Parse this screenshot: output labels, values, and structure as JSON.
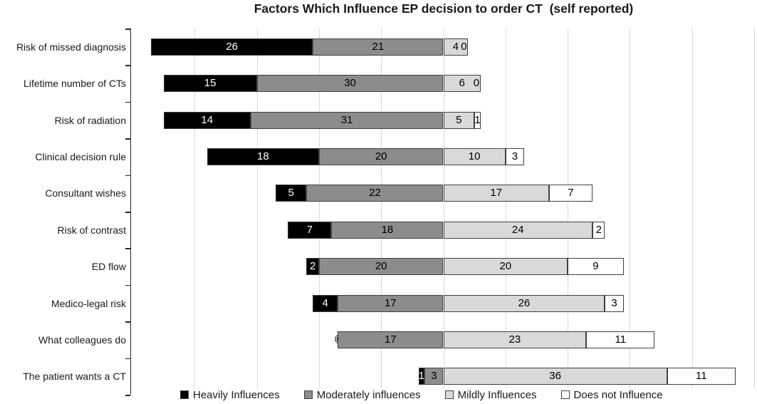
{
  "title": "Factors Which Influence EP decision to order CT  (self reported)",
  "chart_data": {
    "type": "bar",
    "variant": "horizontal-diverging-stacked",
    "title": "Factors Which Influence EP decision to order CT  (self reported)",
    "categories": [
      "Risk of missed diagnosis",
      "Lifetime number of CTs",
      "Risk of radiation",
      "Clinical decision rule",
      "Consultant wishes",
      "Risk of contrast",
      "ED flow",
      "Medico-legal risk",
      "What colleagues do",
      "The patient wants a CT"
    ],
    "series": [
      {
        "name": "Heavily Influences",
        "color": "#000000",
        "label_color": "#ffffff",
        "values": [
          26,
          15,
          14,
          18,
          5,
          7,
          2,
          4,
          0,
          1
        ]
      },
      {
        "name": "Moderately influences",
        "color": "#8c8c8c",
        "label_color": "#000000",
        "values": [
          21,
          30,
          31,
          20,
          22,
          18,
          20,
          17,
          17,
          3
        ]
      },
      {
        "name": "Mildly Influences",
        "color": "#d9d9d9",
        "label_color": "#000000",
        "values": [
          4,
          6,
          5,
          10,
          17,
          24,
          20,
          26,
          23,
          36
        ]
      },
      {
        "name": "Does not Influence",
        "color": "#ffffff",
        "label_color": "#000000",
        "values": [
          0,
          0,
          1,
          3,
          7,
          2,
          9,
          3,
          11,
          11
        ]
      }
    ],
    "diverging_anchor": "boundary between Moderately influences and Mildly Influences",
    "data_labels_shown": true,
    "x_axis_tick_labels_shown": false,
    "grid": "vertical gridlines every 10 units",
    "legend_position": "bottom",
    "legend": [
      "Heavily Influences",
      "Moderately influences",
      "Mildly Influences",
      "Does not Influence"
    ],
    "colors": {
      "heavily": "#000000",
      "moderately": "#8c8c8c",
      "mildly": "#d9d9d9",
      "does_not": "#ffffff",
      "segment_border": "#404040",
      "gridline": "#d9d9d9",
      "axis": "#262626"
    }
  }
}
